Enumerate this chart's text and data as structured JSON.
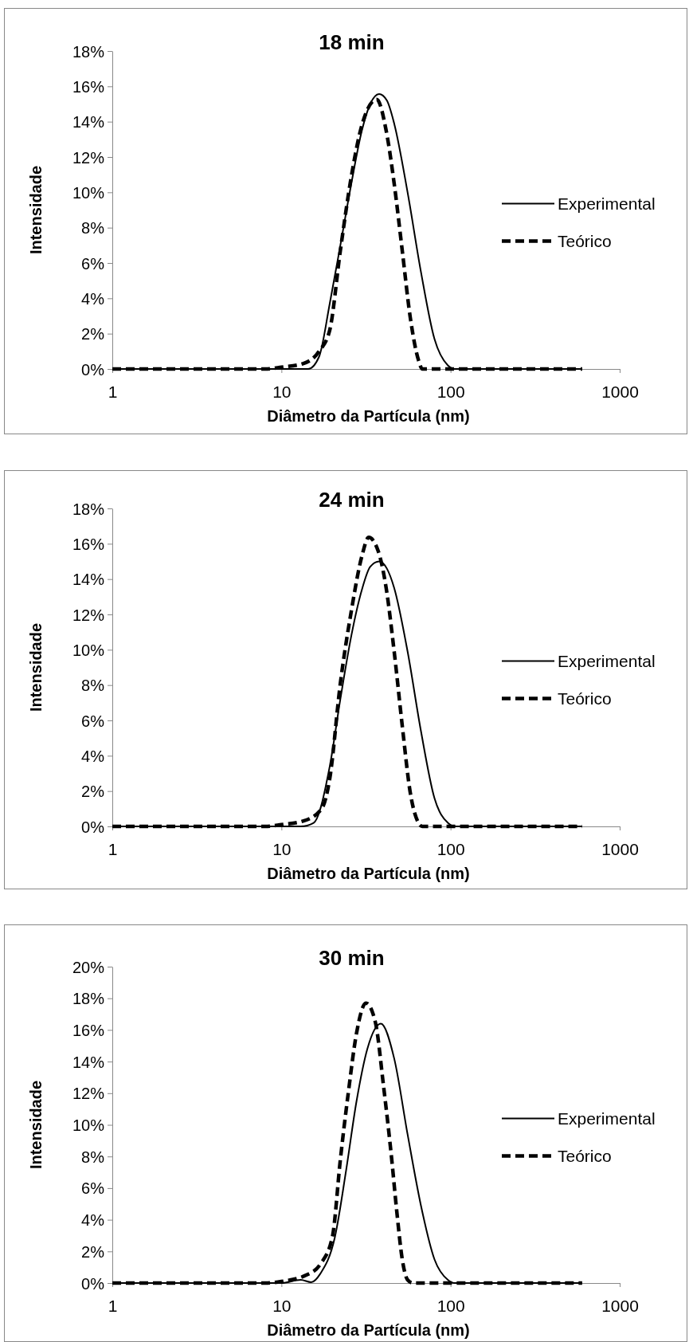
{
  "chart_data": [
    {
      "type": "line",
      "title": "18 min",
      "xlabel": "Diâmetro da Partícula (nm)",
      "ylabel": "Intensidade",
      "log": "x",
      "xlim": [
        1,
        1000
      ],
      "xticks": [
        1,
        10,
        100,
        1000
      ],
      "ylim": [
        0,
        18
      ],
      "yticks": [
        {
          "value": 0,
          "label": "0%"
        },
        {
          "value": 2,
          "label": "2%"
        },
        {
          "value": 4,
          "label": "4%"
        },
        {
          "value": 6,
          "label": "6%"
        },
        {
          "value": 8,
          "label": "8%"
        },
        {
          "value": 10,
          "label": "10%"
        },
        {
          "value": 12,
          "label": "12%"
        },
        {
          "value": 14,
          "label": "14%"
        },
        {
          "value": 16,
          "label": "16%"
        },
        {
          "value": 18,
          "label": "18%"
        }
      ],
      "grid": false,
      "legend": "right",
      "marker": "none",
      "series": [
        {
          "name": "Experimental",
          "color": "#000000",
          "line_style": "solid",
          "x": [
            1,
            10,
            14.4,
            16.7,
            19.3,
            22.3,
            25.9,
            29.9,
            33.5,
            37.8,
            42,
            46.4,
            55.7,
            66.8,
            80.3,
            96.4,
            105,
            600
          ],
          "values": [
            0,
            0,
            0,
            0.7,
            3.7,
            7,
            10.5,
            13.5,
            15,
            15.56,
            15.2,
            13.9,
            10,
            5.5,
            1.7,
            0.2,
            0,
            0
          ]
        },
        {
          "name": "Teórico",
          "color": "#000000",
          "line_style": "dashed",
          "x": [
            1,
            8,
            10,
            13.4,
            16.7,
            19.3,
            22.3,
            25.9,
            29.9,
            36.6,
            41.6,
            46.4,
            51.8,
            57.8,
            64.6,
            68.1,
            600
          ],
          "values": [
            0,
            0,
            0.1,
            0.3,
            1.0,
            2.2,
            6.7,
            10.9,
            13.8,
            15.26,
            13.5,
            10.5,
            6.7,
            2.9,
            0.5,
            0,
            0
          ]
        }
      ]
    },
    {
      "type": "line",
      "title": "24 min",
      "xlabel": "Diâmetro da Partícula (nm)",
      "ylabel": "Intensidade",
      "log": "x",
      "xlim": [
        1,
        1000
      ],
      "xticks": [
        1,
        10,
        100,
        1000
      ],
      "ylim": [
        0,
        18
      ],
      "yticks": [
        {
          "value": 0,
          "label": "0%"
        },
        {
          "value": 2,
          "label": "2%"
        },
        {
          "value": 4,
          "label": "4%"
        },
        {
          "value": 6,
          "label": "6%"
        },
        {
          "value": 8,
          "label": "8%"
        },
        {
          "value": 10,
          "label": "10%"
        },
        {
          "value": 12,
          "label": "12%"
        },
        {
          "value": 14,
          "label": "14%"
        },
        {
          "value": 16,
          "label": "16%"
        },
        {
          "value": 18,
          "label": "18%"
        }
      ],
      "grid": false,
      "legend": "right",
      "marker": "none",
      "series": [
        {
          "name": "Experimental",
          "color": "#000000",
          "line_style": "solid",
          "x": [
            1,
            13,
            15.5,
            19.3,
            22.3,
            25.9,
            29.9,
            33.5,
            37.8,
            42,
            46.4,
            55.7,
            66.8,
            80.3,
            96.4,
            105,
            600
          ],
          "values": [
            0,
            0,
            0.2,
            3.4,
            7.2,
            10.8,
            13.4,
            14.7,
            15.0,
            14.6,
            13.5,
            9.9,
            5.4,
            1.6,
            0.2,
            0,
            0
          ]
        },
        {
          "name": "Teórico",
          "color": "#000000",
          "line_style": "dashed",
          "x": [
            1,
            8,
            10,
            13.4,
            17.3,
            19.3,
            22.3,
            25.9,
            29.9,
            32.8,
            37.3,
            41.6,
            46.4,
            51.8,
            57.8,
            64.6,
            68,
            600
          ],
          "values": [
            0,
            0,
            0.1,
            0.3,
            1.0,
            2.7,
            8.1,
            12.2,
            15.3,
            16.36,
            15.6,
            13.5,
            9.9,
            5.7,
            1.9,
            0.2,
            0,
            0
          ]
        }
      ]
    },
    {
      "type": "line",
      "title": "30 min",
      "xlabel": "Diâmetro da Partícula (nm)",
      "ylabel": "Intensidade",
      "log": "x",
      "xlim": [
        1,
        1000
      ],
      "xticks": [
        1,
        10,
        100,
        1000
      ],
      "ylim": [
        0,
        20
      ],
      "yticks": [
        {
          "value": 0,
          "label": "0%"
        },
        {
          "value": 2,
          "label": "2%"
        },
        {
          "value": 4,
          "label": "4%"
        },
        {
          "value": 6,
          "label": "6%"
        },
        {
          "value": 8,
          "label": "8%"
        },
        {
          "value": 10,
          "label": "10%"
        },
        {
          "value": 12,
          "label": "12%"
        },
        {
          "value": 14,
          "label": "14%"
        },
        {
          "value": 16,
          "label": "16%"
        },
        {
          "value": 18,
          "label": "18%"
        },
        {
          "value": 20,
          "label": "20%"
        }
      ],
      "grid": false,
      "legend": "right",
      "marker": "none",
      "series": [
        {
          "name": "Experimental",
          "color": "#000000",
          "line_style": "solid",
          "x": [
            1,
            10,
            13,
            15,
            17,
            20.7,
            24.1,
            27.8,
            32.2,
            38.7,
            46.4,
            55.7,
            66.8,
            80.3,
            96.4,
            105,
            600
          ],
          "values": [
            0,
            0,
            0.2,
            0.05,
            0.6,
            2.9,
            7.1,
            11.5,
            14.8,
            16.4,
            14.2,
            9.4,
            4.9,
            1.5,
            0.2,
            0,
            0
          ]
        },
        {
          "name": "Teórico",
          "color": "#000000",
          "line_style": "dashed",
          "x": [
            1,
            8,
            10,
            14,
            17,
            20,
            22.3,
            24.9,
            27.8,
            31.6,
            35.9,
            40.1,
            44.8,
            48,
            51.8,
            55.7,
            60,
            600
          ],
          "values": [
            0,
            0,
            0.1,
            0.5,
            1.2,
            2.9,
            7.8,
            12.1,
            15.8,
            17.7,
            16.5,
            12.5,
            7.9,
            4.6,
            1.5,
            0.2,
            0,
            0
          ]
        }
      ]
    }
  ]
}
